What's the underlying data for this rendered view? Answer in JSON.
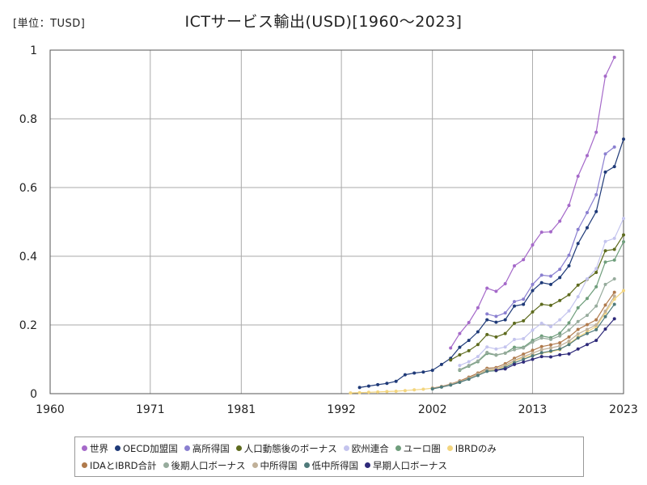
{
  "unit_label": "[単位：TUSD]",
  "chart_data": {
    "type": "line",
    "title": "ICTサービス輸出(USD)[1960～2023]",
    "xlabel": "",
    "ylabel": "",
    "xlim": [
      1960,
      2023
    ],
    "ylim": [
      0,
      1
    ],
    "x_ticks": [
      "1960",
      "1971",
      "1981",
      "1992",
      "2002",
      "2013",
      "2023"
    ],
    "y_ticks": [
      "0",
      "0.2",
      "0.4",
      "0.6",
      "0.8",
      "1"
    ],
    "grid": true,
    "legend_position": "bottom",
    "series": [
      {
        "name": "世界",
        "color": "#a569c9",
        "x": [
          2004,
          2005,
          2006,
          2007,
          2008,
          2009,
          2010,
          2011,
          2012,
          2013,
          2014,
          2015,
          2016,
          2017,
          2018,
          2019,
          2020,
          2021,
          2022
        ],
        "y": [
          0.133,
          0.175,
          0.207,
          0.25,
          0.307,
          0.298,
          0.32,
          0.372,
          0.39,
          0.433,
          0.47,
          0.471,
          0.502,
          0.548,
          0.633,
          0.693,
          0.761,
          0.924,
          0.979
        ]
      },
      {
        "name": "OECD加盟国",
        "color": "#1f3a78",
        "x": [
          1994,
          1995,
          1996,
          1997,
          1998,
          1999,
          2000,
          2001,
          2002,
          2003,
          2004,
          2005,
          2006,
          2007,
          2008,
          2009,
          2010,
          2011,
          2012,
          2013,
          2014,
          2015,
          2016,
          2017,
          2018,
          2019,
          2020,
          2021,
          2022,
          2023
        ],
        "y": [
          0.018,
          0.022,
          0.026,
          0.03,
          0.036,
          0.055,
          0.06,
          0.063,
          0.068,
          0.085,
          0.103,
          0.135,
          0.155,
          0.18,
          0.215,
          0.208,
          0.215,
          0.255,
          0.26,
          0.3,
          0.323,
          0.318,
          0.338,
          0.372,
          0.437,
          0.483,
          0.53,
          0.645,
          0.661,
          0.741
        ]
      },
      {
        "name": "高所得国",
        "color": "#8a7fd0",
        "x": [
          2008,
          2009,
          2010,
          2011,
          2012,
          2013,
          2014,
          2015,
          2016,
          2017,
          2018,
          2019,
          2020,
          2021,
          2022
        ],
        "y": [
          0.232,
          0.225,
          0.235,
          0.268,
          0.275,
          0.318,
          0.345,
          0.342,
          0.362,
          0.403,
          0.478,
          0.527,
          0.579,
          0.698,
          0.718
        ]
      },
      {
        "name": "人口動態後のボーナス",
        "color": "#5e6b1e",
        "x": [
          2004,
          2005,
          2006,
          2007,
          2008,
          2009,
          2010,
          2011,
          2012,
          2013,
          2014,
          2015,
          2016,
          2017,
          2018,
          2019,
          2020,
          2021,
          2022,
          2023
        ],
        "y": [
          0.098,
          0.113,
          0.125,
          0.143,
          0.172,
          0.165,
          0.175,
          0.205,
          0.212,
          0.238,
          0.26,
          0.257,
          0.271,
          0.288,
          0.316,
          0.333,
          0.353,
          0.416,
          0.42,
          0.462
        ]
      },
      {
        "name": "欧州連合",
        "color": "#c4c4ee",
        "x": [
          2005,
          2006,
          2007,
          2008,
          2009,
          2010,
          2011,
          2012,
          2013,
          2014,
          2015,
          2016,
          2017,
          2018,
          2019,
          2020,
          2021,
          2022,
          2023
        ],
        "y": [
          0.082,
          0.093,
          0.108,
          0.136,
          0.13,
          0.136,
          0.158,
          0.16,
          0.185,
          0.205,
          0.195,
          0.215,
          0.241,
          0.282,
          0.334,
          0.364,
          0.443,
          0.452,
          0.51
        ]
      },
      {
        "name": "ユーロ圏",
        "color": "#6f9e7c",
        "x": [
          2005,
          2006,
          2007,
          2008,
          2009,
          2010,
          2011,
          2012,
          2013,
          2014,
          2015,
          2016,
          2017,
          2018,
          2019,
          2020,
          2021,
          2022,
          2023
        ],
        "y": [
          0.068,
          0.08,
          0.093,
          0.117,
          0.112,
          0.118,
          0.135,
          0.135,
          0.155,
          0.168,
          0.163,
          0.176,
          0.206,
          0.25,
          0.277,
          0.311,
          0.383,
          0.389,
          0.442
        ]
      },
      {
        "name": "IBRDのみ",
        "color": "#f3d57e",
        "x": [
          1993,
          1994,
          1995,
          1996,
          1997,
          1998,
          1999,
          2000,
          2001,
          2002,
          2003,
          2004,
          2005,
          2006,
          2007,
          2008,
          2009,
          2010,
          2011,
          2012,
          2013,
          2014,
          2015,
          2016,
          2017,
          2018,
          2019,
          2020,
          2021,
          2022,
          2023
        ],
        "y": [
          0.002,
          0.003,
          0.004,
          0.005,
          0.006,
          0.007,
          0.009,
          0.011,
          0.013,
          0.016,
          0.02,
          0.027,
          0.035,
          0.045,
          0.056,
          0.068,
          0.07,
          0.08,
          0.095,
          0.105,
          0.112,
          0.118,
          0.122,
          0.128,
          0.145,
          0.165,
          0.18,
          0.195,
          0.235,
          0.275,
          0.3
        ]
      },
      {
        "name": "IDAとIBRD合計",
        "color": "#b07a4c",
        "x": [
          2002,
          2003,
          2004,
          2005,
          2006,
          2007,
          2008,
          2009,
          2010,
          2011,
          2012,
          2013,
          2014,
          2015,
          2016,
          2017,
          2018,
          2019,
          2020,
          2021,
          2022
        ],
        "y": [
          0.016,
          0.021,
          0.028,
          0.037,
          0.048,
          0.06,
          0.074,
          0.076,
          0.087,
          0.103,
          0.115,
          0.126,
          0.137,
          0.142,
          0.148,
          0.165,
          0.187,
          0.201,
          0.215,
          0.258,
          0.295
        ]
      },
      {
        "name": "後期人口ボーナス",
        "color": "#96ab9c",
        "x": [
          2005,
          2006,
          2007,
          2008,
          2009,
          2010,
          2011,
          2012,
          2013,
          2014,
          2015,
          2016,
          2017,
          2018,
          2019,
          2020,
          2021,
          2022
        ],
        "y": [
          0.07,
          0.082,
          0.095,
          0.12,
          0.113,
          0.118,
          0.128,
          0.133,
          0.15,
          0.162,
          0.158,
          0.168,
          0.185,
          0.21,
          0.228,
          0.255,
          0.318,
          0.334
        ]
      },
      {
        "name": "中所得国",
        "color": "#c0b098",
        "x": [
          2002,
          2003,
          2004,
          2005,
          2006,
          2007,
          2008,
          2009,
          2010,
          2011,
          2012,
          2013,
          2014,
          2015,
          2016,
          2017,
          2018,
          2019,
          2020,
          2021,
          2022
        ],
        "y": [
          0.015,
          0.02,
          0.027,
          0.035,
          0.045,
          0.057,
          0.07,
          0.072,
          0.082,
          0.097,
          0.108,
          0.118,
          0.128,
          0.133,
          0.139,
          0.153,
          0.174,
          0.187,
          0.2,
          0.24,
          0.284
        ]
      },
      {
        "name": "低中所得国",
        "color": "#4f7a7a",
        "x": [
          2002,
          2003,
          2004,
          2005,
          2006,
          2007,
          2008,
          2009,
          2010,
          2011,
          2012,
          2013,
          2014,
          2015,
          2016,
          2017,
          2018,
          2019,
          2020,
          2021,
          2022
        ],
        "y": [
          0.014,
          0.019,
          0.025,
          0.033,
          0.042,
          0.053,
          0.065,
          0.067,
          0.076,
          0.09,
          0.1,
          0.11,
          0.119,
          0.124,
          0.13,
          0.143,
          0.162,
          0.175,
          0.186,
          0.224,
          0.26
        ]
      },
      {
        "name": "早期人口ボーナス",
        "color": "#2e2a7a",
        "x": [
          2009,
          2010,
          2011,
          2012,
          2013,
          2014,
          2015,
          2016,
          2017,
          2018,
          2019,
          2020,
          2021,
          2022
        ],
        "y": [
          0.068,
          0.072,
          0.085,
          0.092,
          0.1,
          0.108,
          0.107,
          0.113,
          0.116,
          0.13,
          0.143,
          0.155,
          0.188,
          0.218
        ]
      }
    ]
  }
}
